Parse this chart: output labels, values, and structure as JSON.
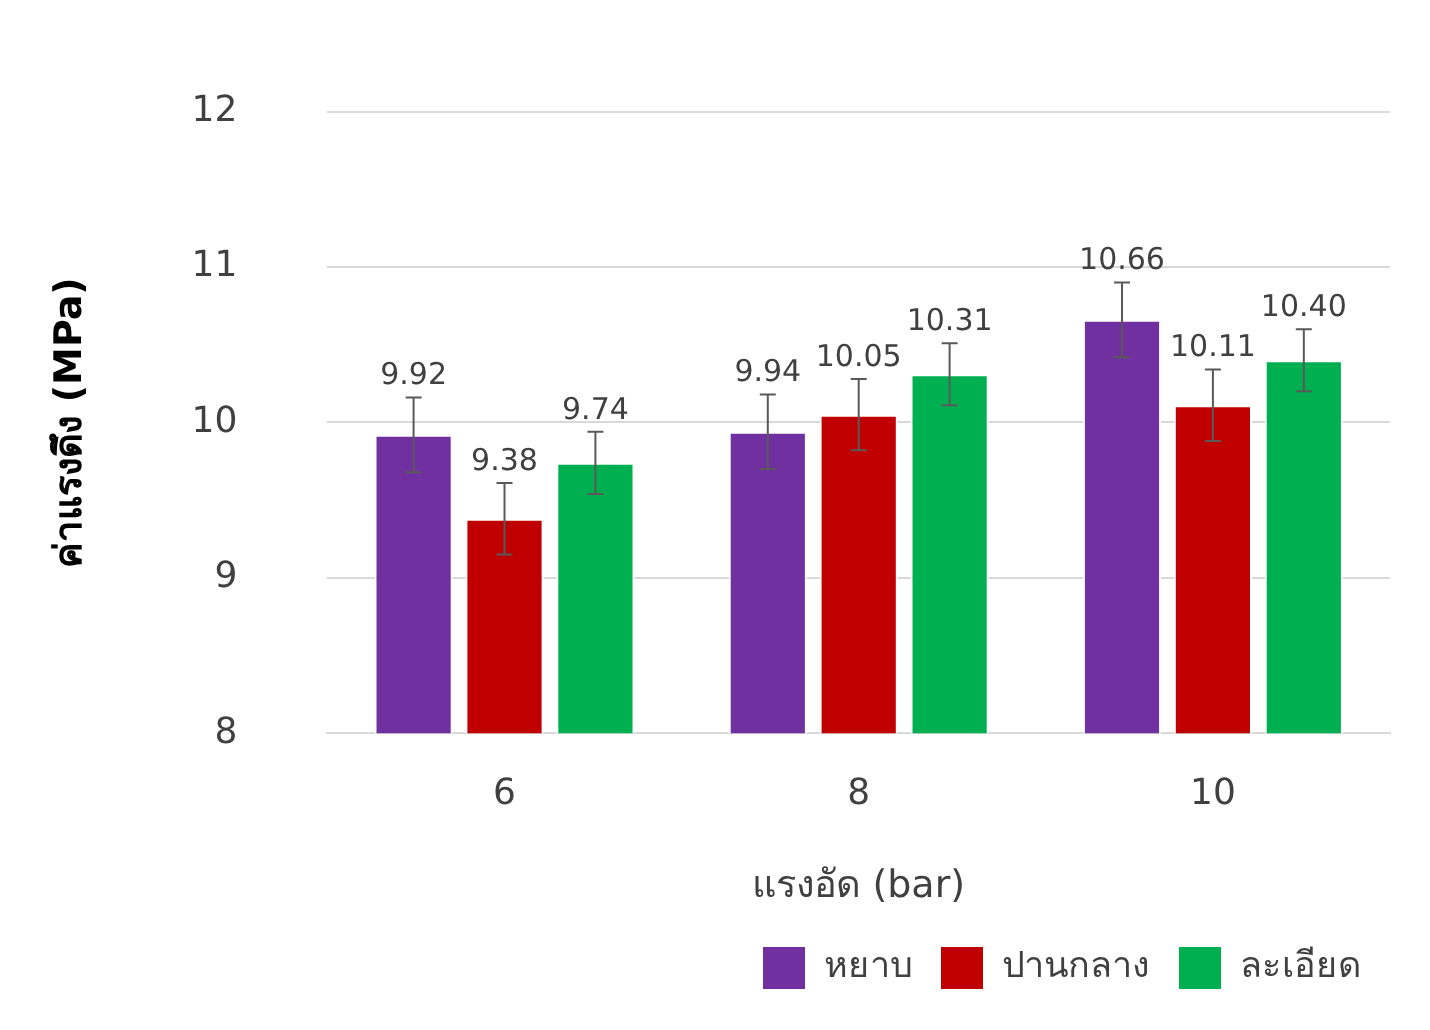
{
  "chart_data": {
    "type": "bar",
    "categories": [
      "6",
      "8",
      "10"
    ],
    "series": [
      {
        "name": "หยาบ",
        "color": "#7030a0",
        "values": [
          9.92,
          9.94,
          10.66
        ],
        "errors": [
          0.24,
          0.24,
          0.24
        ],
        "value_labels": [
          "9.92",
          "9.94",
          "10.66"
        ]
      },
      {
        "name": "ปานกลาง",
        "color": "#c00000",
        "values": [
          9.38,
          10.05,
          10.11
        ],
        "errors": [
          0.23,
          0.23,
          0.23
        ],
        "value_labels": [
          "9.38",
          "10.05",
          "10.11"
        ]
      },
      {
        "name": "ละเอียด",
        "color": "#00b050",
        "values": [
          9.74,
          10.31,
          10.4
        ],
        "errors": [
          0.2,
          0.2,
          0.2
        ],
        "value_labels": [
          "9.74",
          "10.31",
          "10.40"
        ]
      }
    ],
    "xlabel": "แรงอัด (bar)",
    "ylabel": "ค่าแรงดึง (MPa)",
    "ylim": [
      8,
      12
    ],
    "yticks": [
      8,
      9,
      10,
      11,
      12
    ],
    "grid": "y",
    "legend": "bottom right"
  }
}
